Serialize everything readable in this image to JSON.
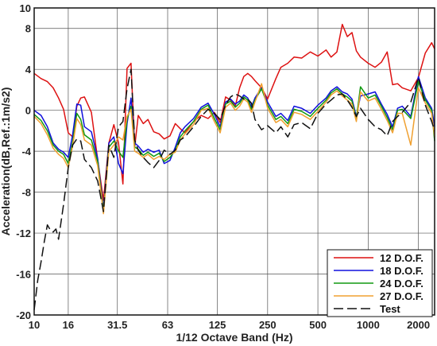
{
  "chart_data": {
    "type": "line",
    "xlabel": "1/12 Octave Band (Hz)",
    "ylabel": "Acceleration(dB,Ref.:1m/s2)",
    "xscale": "log",
    "xlim": [
      10,
      2500
    ],
    "ylim": [
      -20,
      10
    ],
    "x_ticks": [
      10,
      16,
      31.5,
      63,
      125,
      250,
      500,
      1000,
      2000
    ],
    "x_tick_labels": [
      "10",
      "16",
      "31.5",
      "63",
      "125",
      "250",
      "500",
      "1000",
      "2000"
    ],
    "y_ticks": [
      -20,
      -16,
      -12,
      -8,
      -4,
      0,
      4,
      8,
      10
    ],
    "y_tick_labels": [
      "-20",
      "-16",
      "-12",
      "-8",
      "-4",
      "0",
      "4",
      "8",
      "10"
    ],
    "grid": true,
    "legend_position": "bottom-right",
    "series": [
      {
        "name": "12 D.O.F.",
        "color": "#dd1111",
        "dash": "solid",
        "x": [
          10,
          11,
          12,
          13,
          14,
          15,
          16,
          17,
          18,
          19,
          20,
          22,
          24,
          26,
          28,
          30,
          32,
          34,
          36,
          38,
          40,
          42,
          45,
          48,
          52,
          56,
          60,
          65,
          70,
          75,
          80,
          90,
          100,
          110,
          120,
          130,
          140,
          150,
          160,
          170,
          180,
          190,
          200,
          210,
          230,
          250,
          280,
          300,
          330,
          360,
          400,
          450,
          500,
          560,
          600,
          650,
          700,
          750,
          800,
          850,
          900,
          1000,
          1100,
          1200,
          1300,
          1400,
          1500,
          1600,
          1800,
          2000,
          2200,
          2400,
          2500
        ],
        "y": [
          3.6,
          3.1,
          2.8,
          2.2,
          1.2,
          0.1,
          -2.2,
          -2.6,
          0.4,
          1.2,
          1.3,
          -0.2,
          -4.8,
          -8.8,
          -3.2,
          -1.4,
          -3.2,
          -7.2,
          4.1,
          4.6,
          -3.6,
          -0.5,
          -1.3,
          -0.9,
          -2.1,
          -2.3,
          -2.8,
          -2.5,
          -1.3,
          -1.8,
          -2.2,
          -1.1,
          -0.5,
          -0.8,
          -0.2,
          -1.2,
          1.3,
          1.0,
          0.4,
          2.2,
          3.3,
          3.6,
          3.3,
          2.9,
          2.2,
          1.1,
          3.1,
          4.2,
          4.6,
          5.2,
          5.1,
          5.7,
          5.3,
          5.9,
          5.2,
          5.7,
          8.4,
          7.2,
          7.6,
          5.8,
          5.2,
          4.6,
          4.2,
          4.7,
          5.7,
          2.5,
          2.6,
          2.2,
          1.9,
          3.2,
          5.6,
          6.6,
          6.0
        ]
      },
      {
        "name": "18 D.O.F.",
        "color": "#1010dd",
        "dash": "solid",
        "x": [
          10,
          11,
          12,
          13,
          14,
          15,
          16,
          17,
          18,
          19,
          20,
          22,
          24,
          26,
          28,
          30,
          32,
          34,
          36,
          38,
          40,
          42,
          45,
          48,
          52,
          56,
          60,
          65,
          70,
          75,
          80,
          90,
          100,
          110,
          120,
          130,
          140,
          150,
          160,
          170,
          180,
          190,
          200,
          210,
          230,
          250,
          280,
          300,
          330,
          360,
          400,
          450,
          500,
          560,
          600,
          650,
          700,
          750,
          800,
          850,
          900,
          1000,
          1100,
          1200,
          1300,
          1400,
          1500,
          1600,
          1800,
          2000,
          2200,
          2400,
          2500
        ],
        "y": [
          0.0,
          -0.5,
          -1.6,
          -3.2,
          -3.8,
          -4.1,
          -4.6,
          -2.4,
          0.6,
          0.5,
          -1.6,
          -2.1,
          -4.7,
          -9.7,
          -3.2,
          -2.6,
          -5.2,
          -6.2,
          -1.3,
          1.2,
          -3.2,
          -3.5,
          -4.1,
          -3.8,
          -4.1,
          -3.9,
          -5.2,
          -4.9,
          -3.6,
          -2.2,
          -1.6,
          -0.8,
          0.3,
          0.7,
          -0.4,
          -1.6,
          0.8,
          1.1,
          0.6,
          0.9,
          1.5,
          1.2,
          0.3,
          1.2,
          2.2,
          0.8,
          -0.6,
          -0.3,
          -1.0,
          0.4,
          0.2,
          -0.3,
          0.5,
          1.2,
          1.9,
          2.3,
          1.8,
          1.6,
          1.1,
          -0.6,
          1.4,
          1.6,
          1.8,
          0.6,
          -0.4,
          -1.6,
          0.2,
          0.4,
          -0.6,
          3.3,
          1.2,
          0.2,
          -1.6
        ]
      },
      {
        "name": "24 D.O.F.",
        "color": "#119911",
        "dash": "solid",
        "x": [
          10,
          11,
          12,
          13,
          14,
          15,
          16,
          17,
          18,
          19,
          20,
          22,
          24,
          26,
          28,
          30,
          32,
          34,
          36,
          38,
          40,
          42,
          45,
          48,
          52,
          56,
          60,
          65,
          70,
          75,
          80,
          90,
          100,
          110,
          120,
          130,
          140,
          150,
          160,
          170,
          180,
          190,
          200,
          210,
          230,
          250,
          280,
          300,
          330,
          360,
          400,
          450,
          500,
          560,
          600,
          650,
          700,
          750,
          800,
          850,
          900,
          1000,
          1100,
          1200,
          1300,
          1400,
          1500,
          1600,
          1800,
          2000,
          2200,
          2400,
          2500
        ],
        "y": [
          -0.4,
          -1.0,
          -2.0,
          -3.4,
          -4.0,
          -4.3,
          -5.2,
          -3.1,
          -0.3,
          -0.9,
          -2.4,
          -2.9,
          -5.0,
          -9.9,
          -3.6,
          -3.0,
          -4.0,
          -4.6,
          -0.9,
          0.4,
          -3.6,
          -3.8,
          -4.4,
          -4.1,
          -4.5,
          -4.2,
          -5.0,
          -4.6,
          -3.9,
          -2.6,
          -2.0,
          -1.1,
          0.1,
          0.5,
          -0.8,
          -1.9,
          0.6,
          0.9,
          0.3,
          0.7,
          1.3,
          1.0,
          0.1,
          1.0,
          2.1,
          0.5,
          -0.9,
          -0.6,
          -1.3,
          0.1,
          -0.1,
          -0.6,
          0.2,
          1.0,
          1.7,
          2.1,
          1.6,
          1.3,
          0.9,
          -0.8,
          2.3,
          1.2,
          1.5,
          0.4,
          -0.7,
          -1.9,
          0.0,
          0.1,
          -0.8,
          2.8,
          1.0,
          0.0,
          -3.0
        ]
      },
      {
        "name": "27 D.O.F.",
        "color": "#f0a030",
        "dash": "solid",
        "x": [
          10,
          11,
          12,
          13,
          14,
          15,
          16,
          17,
          18,
          19,
          20,
          22,
          24,
          26,
          28,
          30,
          32,
          34,
          36,
          38,
          40,
          42,
          45,
          48,
          52,
          56,
          60,
          65,
          70,
          75,
          80,
          90,
          100,
          110,
          120,
          130,
          140,
          150,
          160,
          170,
          180,
          190,
          200,
          210,
          230,
          250,
          280,
          300,
          330,
          360,
          400,
          450,
          500,
          560,
          600,
          650,
          700,
          750,
          800,
          850,
          900,
          1000,
          1100,
          1200,
          1300,
          1400,
          1500,
          1600,
          1800,
          2000,
          2200,
          2400,
          2500
        ],
        "y": [
          -0.6,
          -1.3,
          -2.4,
          -3.7,
          -4.3,
          -4.7,
          -5.6,
          -3.5,
          -0.8,
          -1.4,
          -2.9,
          -3.4,
          -5.4,
          -10.1,
          -4.0,
          -3.4,
          -2.6,
          -2.9,
          -0.6,
          0.1,
          -4.0,
          -4.2,
          -4.6,
          -4.3,
          -4.8,
          -4.5,
          -4.8,
          -4.3,
          -4.1,
          -2.9,
          -2.3,
          -1.4,
          0.0,
          0.2,
          -1.1,
          -2.2,
          0.3,
          0.7,
          0.0,
          0.4,
          1.1,
          0.8,
          -0.2,
          0.8,
          2.6,
          0.2,
          -1.2,
          -0.9,
          -1.6,
          -0.2,
          -0.4,
          -0.9,
          -0.1,
          0.8,
          1.5,
          1.9,
          1.4,
          1.0,
          0.6,
          -1.1,
          1.8,
          0.9,
          1.2,
          0.1,
          -1.0,
          -2.2,
          -0.3,
          -0.3,
          -3.4,
          2.2,
          0.7,
          -0.3,
          -2.6
        ]
      },
      {
        "name": "Test",
        "color": "#111111",
        "dash": "dashed",
        "x": [
          10,
          10.5,
          11,
          11.5,
          12,
          12.5,
          13,
          13.5,
          14,
          15,
          16,
          17,
          18,
          19,
          20,
          22,
          24,
          26,
          28,
          30,
          32,
          34,
          36,
          38,
          40,
          42,
          45,
          48,
          52,
          56,
          60,
          65,
          70,
          75,
          80,
          90,
          100,
          110,
          120,
          130,
          140,
          150,
          160,
          170,
          180,
          190,
          200,
          210,
          230,
          250,
          280,
          300,
          330,
          360,
          400,
          450,
          500,
          560,
          600,
          650,
          700,
          750,
          800,
          850,
          900,
          1000,
          1100,
          1200,
          1300,
          1400,
          1500,
          1600,
          1800,
          2000,
          2200,
          2400,
          2500
        ],
        "y": [
          -19.5,
          -16.6,
          -14.8,
          -12.8,
          -11.2,
          -11.7,
          -11.9,
          -11.6,
          -12.6,
          -9.2,
          -5.6,
          -3.4,
          -2.8,
          -3.0,
          -4.8,
          -5.6,
          -6.9,
          -9.9,
          -3.4,
          -4.6,
          -1.6,
          -1.1,
          2.1,
          4.0,
          -2.9,
          -3.9,
          -4.6,
          -5.1,
          -5.6,
          -4.9,
          -3.9,
          -4.3,
          -3.9,
          -2.9,
          -2.6,
          -1.6,
          -0.6,
          0.1,
          -0.3,
          -0.9,
          0.5,
          1.3,
          1.6,
          1.4,
          1.1,
          1.1,
          0.7,
          -0.9,
          -1.9,
          -1.5,
          -2.2,
          -1.6,
          -2.6,
          -1.4,
          -1.2,
          -1.8,
          -0.3,
          0.6,
          1.0,
          1.5,
          1.6,
          1.0,
          0.3,
          -0.6,
          0.2,
          -0.9,
          -1.6,
          -1.9,
          -2.5,
          -1.1,
          -0.6,
          -0.2,
          0.8,
          3.2,
          0.5,
          -1.1,
          -2.0
        ]
      }
    ]
  }
}
